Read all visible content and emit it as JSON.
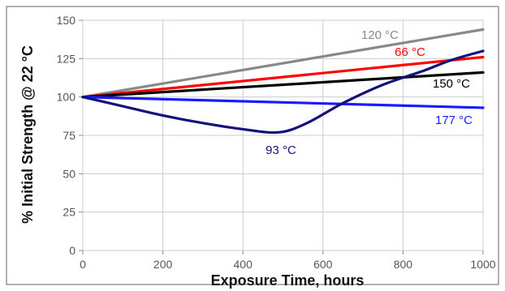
{
  "chart_data": {
    "type": "line",
    "title": "",
    "xlabel": "Exposure Time, hours",
    "ylabel": "% Initial Strength @ 22 °C",
    "xlim": [
      0,
      1000
    ],
    "ylim": [
      0,
      150
    ],
    "x_ticks": [
      "0",
      "200",
      "400",
      "600",
      "800",
      "1000"
    ],
    "y_ticks": [
      "0",
      "25",
      "50",
      "75",
      "100",
      "125",
      "150"
    ],
    "grid": true,
    "series": [
      {
        "name": "120 °C",
        "color": "#888888",
        "points": [
          [
            0,
            100
          ],
          [
            1000,
            144
          ]
        ]
      },
      {
        "name": "66 °C",
        "color": "#ff0000",
        "points": [
          [
            0,
            100
          ],
          [
            1000,
            126
          ]
        ]
      },
      {
        "name": "150 °C",
        "color": "#000000",
        "points": [
          [
            0,
            100
          ],
          [
            1000,
            116
          ]
        ]
      },
      {
        "name": "177 °C",
        "color": "#1a1aff",
        "points": [
          [
            0,
            100
          ],
          [
            1000,
            93
          ]
        ]
      },
      {
        "name": "93 °C",
        "color": "#12127a",
        "points": [
          [
            0,
            100
          ],
          [
            100,
            94
          ],
          [
            200,
            88
          ],
          [
            300,
            83
          ],
          [
            400,
            79
          ],
          [
            490,
            77
          ],
          [
            560,
            83
          ],
          [
            650,
            96
          ],
          [
            750,
            108
          ],
          [
            850,
            117
          ],
          [
            920,
            124
          ],
          [
            1000,
            130
          ]
        ]
      }
    ]
  }
}
